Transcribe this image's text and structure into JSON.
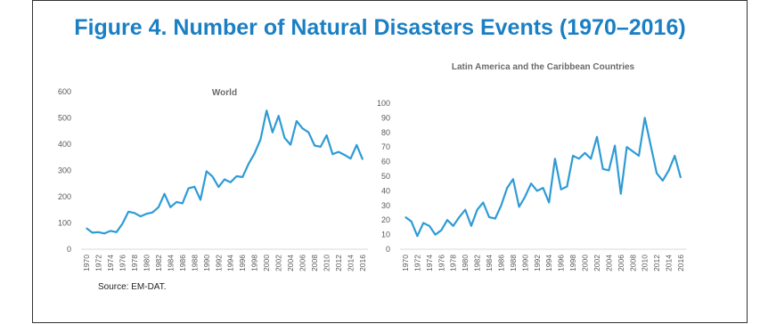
{
  "figure_title": "Figure 4. Number of Natural Disasters Events (1970–2016)",
  "source": "Source: EM-DAT.",
  "colors": {
    "title": "#1b7fc4",
    "line": "#2e9bd6",
    "axis": "#d9d9d9"
  },
  "chart_data": [
    {
      "type": "line",
      "title": "World",
      "xlabel": "",
      "ylabel": "",
      "ylim": [
        0,
        600
      ],
      "yticks": [
        0,
        100,
        200,
        300,
        400,
        500,
        600
      ],
      "grid": false,
      "x": [
        1970,
        1971,
        1972,
        1973,
        1974,
        1975,
        1976,
        1977,
        1978,
        1979,
        1980,
        1981,
        1982,
        1983,
        1984,
        1985,
        1986,
        1987,
        1988,
        1989,
        1990,
        1991,
        1992,
        1993,
        1994,
        1995,
        1996,
        1997,
        1998,
        1999,
        2000,
        2001,
        2002,
        2003,
        2004,
        2005,
        2006,
        2007,
        2008,
        2009,
        2010,
        2011,
        2012,
        2013,
        2014,
        2015,
        2016
      ],
      "xticks": [
        "1970",
        "1972",
        "1974",
        "1976",
        "1978",
        "1980",
        "1982",
        "1984",
        "1986",
        "1988",
        "1990",
        "1992",
        "1994",
        "1996",
        "1998",
        "2000",
        "2002",
        "2004",
        "2006",
        "2008",
        "2010",
        "2012",
        "2014",
        "2016"
      ],
      "series": [
        {
          "values": [
            80,
            63,
            65,
            60,
            70,
            65,
            97,
            143,
            138,
            125,
            135,
            140,
            160,
            211,
            160,
            180,
            175,
            232,
            238,
            188,
            297,
            277,
            237,
            266,
            255,
            278,
            275,
            325,
            365,
            418,
            528,
            445,
            508,
            424,
            398,
            488,
            460,
            445,
            395,
            390,
            434,
            362,
            371,
            359,
            345,
            397,
            342
          ]
        }
      ]
    },
    {
      "type": "line",
      "title": "Latin America and the Caribbean Countries",
      "xlabel": "",
      "ylabel": "",
      "ylim": [
        0,
        100
      ],
      "yticks": [
        0,
        10,
        20,
        30,
        40,
        50,
        60,
        70,
        80,
        90,
        100
      ],
      "grid": false,
      "x": [
        1970,
        1971,
        1972,
        1973,
        1974,
        1975,
        1976,
        1977,
        1978,
        1979,
        1980,
        1981,
        1982,
        1983,
        1984,
        1985,
        1986,
        1987,
        1988,
        1989,
        1990,
        1991,
        1992,
        1993,
        1994,
        1995,
        1996,
        1997,
        1998,
        1999,
        2000,
        2001,
        2002,
        2003,
        2004,
        2005,
        2006,
        2007,
        2008,
        2009,
        2010,
        2011,
        2012,
        2013,
        2014,
        2015,
        2016
      ],
      "xticks": [
        "1970",
        "1972",
        "1974",
        "1976",
        "1978",
        "1980",
        "1982",
        "1984",
        "1986",
        "1988",
        "1990",
        "1992",
        "1994",
        "1996",
        "1998",
        "2000",
        "2002",
        "2004",
        "2006",
        "2008",
        "2010",
        "2012",
        "2014",
        "2016"
      ],
      "series": [
        {
          "values": [
            22,
            19,
            9,
            18,
            16,
            10,
            13,
            20,
            16,
            22,
            27,
            16,
            27,
            32,
            22,
            21,
            30,
            42,
            48,
            29,
            36,
            45,
            40,
            42,
            32,
            62,
            41,
            43,
            64,
            62,
            66,
            62,
            77,
            55,
            54,
            71,
            38,
            70,
            67,
            64,
            90,
            71,
            52,
            47,
            54,
            64,
            49
          ]
        }
      ]
    }
  ]
}
